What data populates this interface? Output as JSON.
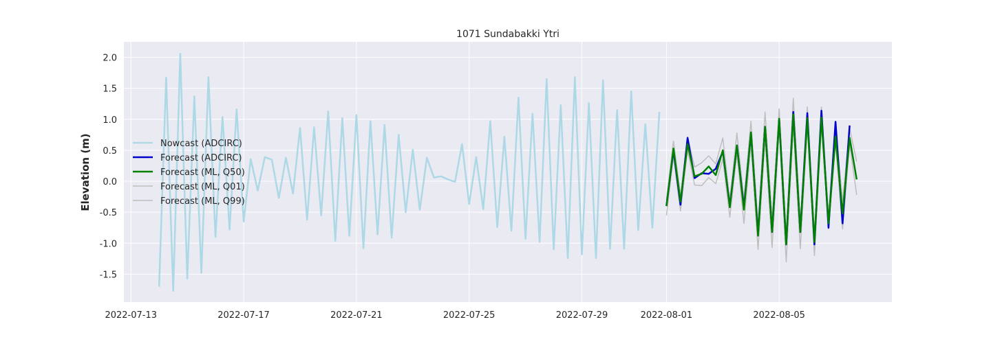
{
  "chart_data": {
    "type": "line",
    "title": "1071 Sundabakki Ytri",
    "xlabel": "",
    "ylabel": "Elevation (m)",
    "xlim": [
      "2022-07-12T18:00",
      "2022-08-09T00:00"
    ],
    "ylim": [
      -1.95,
      2.25
    ],
    "xticks": [
      "2022-07-13",
      "2022-07-17",
      "2022-07-21",
      "2022-07-25",
      "2022-07-29",
      "2022-08-01",
      "2022-08-05"
    ],
    "yticks": [
      "-1.5",
      "-1.0",
      "-0.5",
      "0.0",
      "0.5",
      "1.0",
      "1.5",
      "2.0"
    ],
    "grid": true,
    "legend_position": "center-left",
    "series": [
      {
        "name": "Nowcast (ADCIRC)",
        "color": "#add8e6",
        "width": 2.5,
        "x": [
          "2022-07-14T00:00",
          "2022-07-14T06:00",
          "2022-07-14T12:00",
          "2022-07-14T18:00",
          "2022-07-15T00:00",
          "2022-07-15T06:00",
          "2022-07-15T12:00",
          "2022-07-15T18:00",
          "2022-07-16T00:00",
          "2022-07-16T06:00",
          "2022-07-16T12:00",
          "2022-07-16T18:00",
          "2022-07-17T00:00",
          "2022-07-17T06:00",
          "2022-07-17T12:00",
          "2022-07-17T18:00",
          "2022-07-18T00:00",
          "2022-07-18T06:00",
          "2022-07-18T12:00",
          "2022-07-18T18:00",
          "2022-07-19T00:00",
          "2022-07-19T06:00",
          "2022-07-19T12:00",
          "2022-07-19T18:00",
          "2022-07-20T00:00",
          "2022-07-20T06:00",
          "2022-07-20T12:00",
          "2022-07-20T18:00",
          "2022-07-21T00:00",
          "2022-07-21T06:00",
          "2022-07-21T12:00",
          "2022-07-21T18:00",
          "2022-07-22T00:00",
          "2022-07-22T06:00",
          "2022-07-22T12:00",
          "2022-07-22T18:00",
          "2022-07-23T00:00",
          "2022-07-23T06:00",
          "2022-07-23T12:00",
          "2022-07-23T18:00",
          "2022-07-24T00:00",
          "2022-07-24T06:00",
          "2022-07-24T12:00",
          "2022-07-24T18:00",
          "2022-07-25T00:00",
          "2022-07-25T06:00",
          "2022-07-25T12:00",
          "2022-07-25T18:00",
          "2022-07-26T00:00",
          "2022-07-26T06:00",
          "2022-07-26T12:00",
          "2022-07-26T18:00",
          "2022-07-27T00:00",
          "2022-07-27T06:00",
          "2022-07-27T12:00",
          "2022-07-27T18:00",
          "2022-07-28T00:00",
          "2022-07-28T06:00",
          "2022-07-28T12:00",
          "2022-07-28T18:00",
          "2022-07-29T00:00",
          "2022-07-29T06:00",
          "2022-07-29T12:00",
          "2022-07-29T18:00",
          "2022-07-30T00:00",
          "2022-07-30T06:00",
          "2022-07-30T12:00",
          "2022-07-30T18:00",
          "2022-07-31T00:00",
          "2022-07-31T06:00",
          "2022-07-31T12:00",
          "2022-07-31T18:00"
        ],
        "y": [
          -1.7,
          1.67,
          -1.77,
          2.06,
          -1.57,
          1.37,
          -1.48,
          1.68,
          -0.9,
          1.04,
          -0.78,
          1.16,
          -0.65,
          0.36,
          -0.15,
          0.39,
          0.35,
          -0.27,
          0.38,
          -0.2,
          0.86,
          -0.62,
          0.87,
          -0.55,
          1.13,
          -0.96,
          1.02,
          -0.88,
          1.07,
          -1.08,
          0.97,
          -0.86,
          0.91,
          -0.91,
          0.75,
          -0.5,
          0.51,
          -0.46,
          0.38,
          0.06,
          0.08,
          0.03,
          -0.01,
          0.6,
          -0.37,
          0.39,
          -0.45,
          0.97,
          -0.74,
          0.72,
          -0.8,
          1.35,
          -0.93,
          1.09,
          -0.98,
          1.65,
          -1.1,
          1.23,
          -1.24,
          1.68,
          -1.18,
          1.26,
          -1.24,
          1.63,
          -1.09,
          1.15,
          -1.09,
          1.45,
          -0.79,
          0.92,
          -0.75,
          1.12
        ]
      },
      {
        "name": "Forecast (ADCIRC)",
        "color": "#0000cd",
        "width": 2.5,
        "x": [
          "2022-08-01T00:00",
          "2022-08-01T06:00",
          "2022-08-01T12:00",
          "2022-08-01T18:00",
          "2022-08-02T00:00",
          "2022-08-02T06:00",
          "2022-08-02T12:00",
          "2022-08-02T18:00",
          "2022-08-03T00:00",
          "2022-08-03T06:00",
          "2022-08-03T12:00",
          "2022-08-03T18:00",
          "2022-08-04T00:00",
          "2022-08-04T06:00",
          "2022-08-04T12:00",
          "2022-08-04T18:00",
          "2022-08-05T00:00",
          "2022-08-05T06:00",
          "2022-08-05T12:00",
          "2022-08-05T18:00",
          "2022-08-06T00:00",
          "2022-08-06T06:00",
          "2022-08-06T12:00",
          "2022-08-06T18:00",
          "2022-08-07T00:00",
          "2022-08-07T06:00",
          "2022-08-07T12:00"
        ],
        "y": [
          -0.4,
          0.5,
          -0.38,
          0.7,
          0.05,
          0.13,
          0.12,
          0.2,
          0.48,
          -0.4,
          0.58,
          -0.42,
          0.78,
          -0.85,
          0.88,
          -0.82,
          1.0,
          -1.02,
          1.12,
          -0.82,
          1.1,
          -1.02,
          1.14,
          -0.75,
          0.96,
          -0.68,
          0.9
        ]
      },
      {
        "name": "Forecast (ML, Q50)",
        "color": "#008000",
        "width": 2.5,
        "x": [
          "2022-08-01T00:00",
          "2022-08-01T06:00",
          "2022-08-01T12:00",
          "2022-08-01T18:00",
          "2022-08-02T00:00",
          "2022-08-02T06:00",
          "2022-08-02T12:00",
          "2022-08-02T18:00",
          "2022-08-03T00:00",
          "2022-08-03T06:00",
          "2022-08-03T12:00",
          "2022-08-03T18:00",
          "2022-08-04T00:00",
          "2022-08-04T06:00",
          "2022-08-04T12:00",
          "2022-08-04T18:00",
          "2022-08-05T00:00",
          "2022-08-05T06:00",
          "2022-08-05T12:00",
          "2022-08-05T18:00",
          "2022-08-06T00:00",
          "2022-08-06T06:00",
          "2022-08-06T12:00",
          "2022-08-06T18:00",
          "2022-08-07T00:00",
          "2022-08-07T06:00",
          "2022-08-07T12:00",
          "2022-08-07T18:00"
        ],
        "y": [
          -0.4,
          0.53,
          -0.33,
          0.6,
          0.08,
          0.12,
          0.24,
          0.1,
          0.5,
          -0.42,
          0.58,
          -0.46,
          0.79,
          -0.88,
          0.88,
          -0.82,
          1.01,
          -1.02,
          1.08,
          -0.82,
          1.02,
          -0.98,
          1.03,
          -0.68,
          0.72,
          -0.52,
          0.7,
          0.03
        ]
      },
      {
        "name": "Forecast (ML, Q01)",
        "color": "#bebebe",
        "width": 1.5,
        "x": [
          "2022-08-01T00:00",
          "2022-08-01T06:00",
          "2022-08-01T12:00",
          "2022-08-01T18:00",
          "2022-08-02T00:00",
          "2022-08-02T06:00",
          "2022-08-02T12:00",
          "2022-08-02T18:00",
          "2022-08-03T00:00",
          "2022-08-03T06:00",
          "2022-08-03T12:00",
          "2022-08-03T18:00",
          "2022-08-04T00:00",
          "2022-08-04T06:00",
          "2022-08-04T12:00",
          "2022-08-04T18:00",
          "2022-08-05T00:00",
          "2022-08-05T06:00",
          "2022-08-05T12:00",
          "2022-08-05T18:00",
          "2022-08-06T00:00",
          "2022-08-06T06:00",
          "2022-08-06T12:00",
          "2022-08-06T18:00",
          "2022-08-07T00:00",
          "2022-08-07T06:00",
          "2022-08-07T12:00",
          "2022-08-07T18:00"
        ],
        "y": [
          -0.55,
          0.4,
          -0.48,
          0.5,
          -0.06,
          -0.07,
          0.06,
          -0.04,
          0.36,
          -0.58,
          0.45,
          -0.68,
          0.6,
          -1.1,
          0.7,
          -1.07,
          0.85,
          -1.3,
          0.88,
          -1.09,
          0.88,
          -1.2,
          0.9,
          -0.77,
          0.62,
          -0.77,
          0.6,
          -0.22
        ]
      },
      {
        "name": "Forecast (ML, Q99)",
        "color": "#bebebe",
        "width": 1.5,
        "x": [
          "2022-08-01T00:00",
          "2022-08-01T06:00",
          "2022-08-01T12:00",
          "2022-08-01T18:00",
          "2022-08-02T00:00",
          "2022-08-02T06:00",
          "2022-08-02T12:00",
          "2022-08-02T18:00",
          "2022-08-03T00:00",
          "2022-08-03T06:00",
          "2022-08-03T12:00",
          "2022-08-03T18:00",
          "2022-08-04T00:00",
          "2022-08-04T06:00",
          "2022-08-04T12:00",
          "2022-08-04T18:00",
          "2022-08-05T00:00",
          "2022-08-05T06:00",
          "2022-08-05T12:00",
          "2022-08-05T18:00",
          "2022-08-06T00:00",
          "2022-08-06T06:00",
          "2022-08-06T12:00",
          "2022-08-06T18:00",
          "2022-08-07T00:00",
          "2022-08-07T06:00",
          "2022-08-07T12:00",
          "2022-08-07T18:00"
        ],
        "y": [
          -0.3,
          0.65,
          -0.22,
          0.72,
          0.23,
          0.3,
          0.41,
          0.28,
          0.7,
          -0.3,
          0.78,
          -0.3,
          0.97,
          -0.7,
          1.12,
          -0.6,
          1.17,
          -0.85,
          1.34,
          -0.65,
          1.2,
          -0.85,
          1.2,
          -0.52,
          0.9,
          -0.32,
          0.85,
          0.32
        ]
      }
    ]
  }
}
